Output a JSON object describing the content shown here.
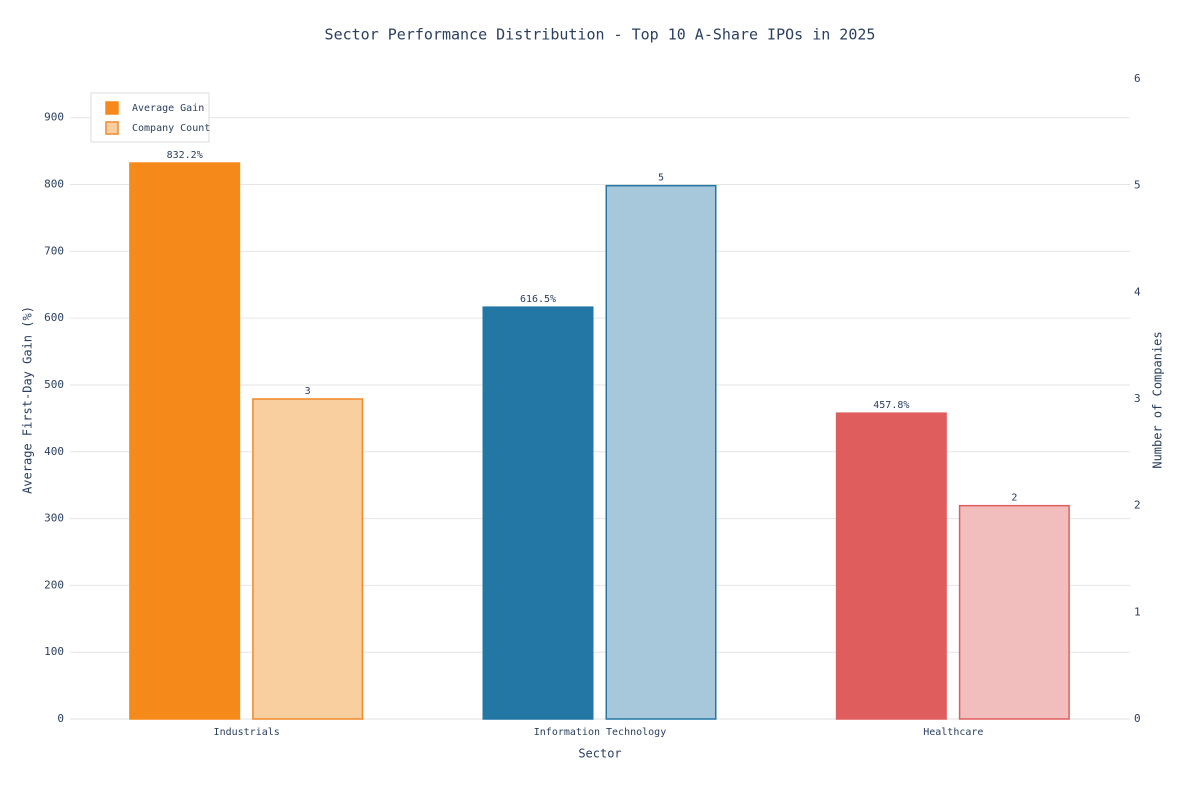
{
  "chart_data": {
    "type": "bar",
    "title": "Sector Performance Distribution - Top 10 A-Share IPOs in 2025",
    "x_label": "Sector",
    "y_label": "Average First-Day Gain (%)",
    "y2_label": "Number of Companies",
    "categories": [
      "Industrials",
      "Information Technology",
      "Healthcare"
    ],
    "series": [
      {
        "name": "Average Gain",
        "colors": [
          "#f5891a",
          "#2277a4",
          "#e05d5e"
        ],
        "edge_colors": [
          "#f5891a",
          "#2277a4",
          "#e05d5e"
        ],
        "values": [
          832.2,
          616.5,
          457.8
        ],
        "value_labels": [
          "832.2%",
          "616.5%",
          "457.8%"
        ]
      },
      {
        "name": "Company Count",
        "axis": "y2",
        "colors": [
          "#f9cfa0",
          "#a7c7da",
          "#f2bdbd"
        ],
        "edge_colors": [
          "#f0892a",
          "#2277a4",
          "#e05d5e"
        ],
        "values": [
          3,
          5,
          2
        ]
      }
    ],
    "ylim": [
      0,
      958
    ],
    "yticks": [
      0,
      100,
      200,
      300,
      400,
      500,
      600,
      700,
      800,
      900
    ],
    "y2lim": [
      0,
      6
    ],
    "y2ticks": [
      0,
      1,
      2,
      3,
      4,
      5,
      6
    ],
    "grid": true,
    "legend": "top-left"
  }
}
